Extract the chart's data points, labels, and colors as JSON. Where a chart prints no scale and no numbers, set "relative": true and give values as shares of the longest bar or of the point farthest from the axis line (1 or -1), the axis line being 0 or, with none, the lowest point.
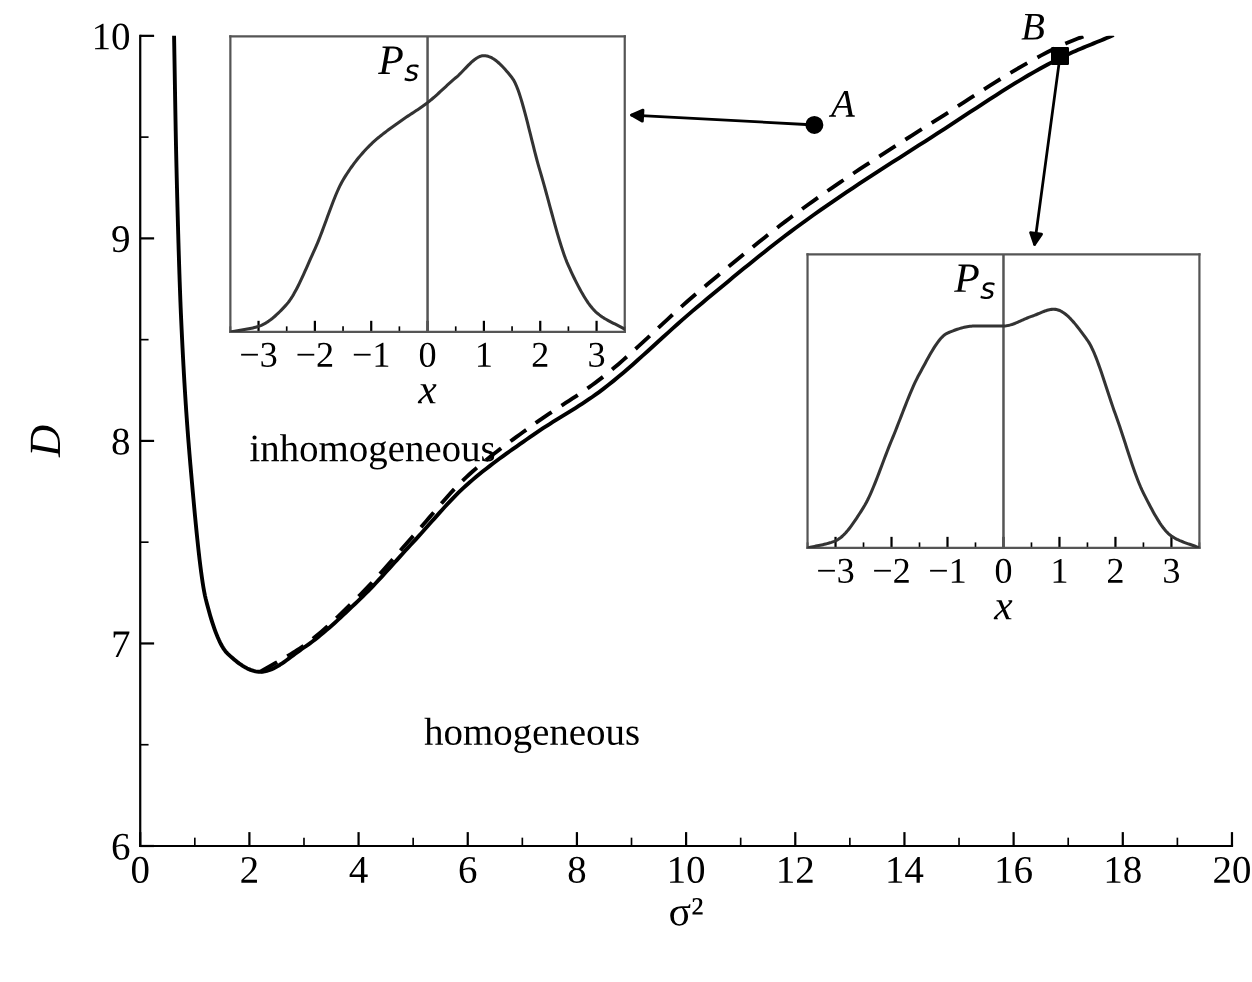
{
  "chart_data": [
    {
      "type": "line",
      "xlabel": "σ²",
      "ylabel": "D",
      "xlim": [
        0,
        20
      ],
      "ylim": [
        6,
        10
      ],
      "xticks": [
        0,
        2,
        4,
        6,
        8,
        10,
        12,
        14,
        16,
        18,
        20
      ],
      "yticks": [
        6,
        7,
        8,
        9,
        10
      ],
      "grid": false,
      "legend": false,
      "series": [
        {
          "color": "#000000",
          "line_style": "solid",
          "marker": "none",
          "x": [
            0.62,
            0.66,
            0.75,
            0.92,
            1.2,
            1.6,
            2.2,
            3.0,
            4.03,
            5.0,
            5.97,
            7.2,
            8.4,
            10.2,
            12.1,
            14.5,
            16.85,
            17.8
          ],
          "values": [
            10.0,
            9.4,
            8.6,
            7.88,
            7.22,
            6.95,
            6.86,
            6.98,
            7.22,
            7.5,
            7.78,
            8.03,
            8.24,
            8.66,
            9.07,
            9.5,
            9.89,
            10.0
          ]
        },
        {
          "color": "#000000",
          "line_style": "dashed",
          "marker": "none",
          "x": [
            2.2,
            3.0,
            4.03,
            5.0,
            5.97,
            7.2,
            8.4,
            10.2,
            12.1,
            14.5,
            16.85,
            17.3
          ],
          "values": [
            6.86,
            6.99,
            7.24,
            7.53,
            7.82,
            8.08,
            8.3,
            8.73,
            9.14,
            9.57,
            9.95,
            10.0
          ]
        },
        {
          "type": "scatter",
          "color": "#000000",
          "marker": "circle",
          "x": [
            12.35
          ],
          "values": [
            9.56
          ]
        },
        {
          "type": "scatter",
          "color": "#000000",
          "marker": "square",
          "x": [
            16.85
          ],
          "values": [
            9.9
          ]
        }
      ],
      "annotations": [
        {
          "text": "A",
          "x": 12.35,
          "y": 9.56
        },
        {
          "text": "B",
          "x": 16.85,
          "y": 9.9
        },
        "inhomogeneous",
        "homogeneous"
      ]
    },
    {
      "type": "line",
      "relative": true,
      "xlabel": "x",
      "ylabel": "P$_{s}$",
      "xlim": [
        -3.5,
        3.5
      ],
      "xticks": [
        {
          "value": -3,
          "label": "−3"
        },
        {
          "value": -2,
          "label": "−2"
        },
        {
          "value": -1,
          "label": "−1"
        },
        0,
        1,
        2,
        3
      ],
      "tick_labels": "x",
      "ref_lines": [
        {
          "axis": "x",
          "value": 0,
          "color": "#555555"
        }
      ],
      "series": [
        {
          "color": "#333333",
          "line_style": "solid",
          "marker": "none",
          "x": [
            -3.5,
            -3,
            -2.5,
            -2,
            -1.5,
            -1,
            -0.5,
            0,
            0.5,
            1,
            1.5,
            2,
            2.5,
            3,
            3.5
          ],
          "values": [
            0,
            0.02,
            0.1,
            0.3,
            0.55,
            0.68,
            0.76,
            0.83,
            0.92,
            1.0,
            0.92,
            0.58,
            0.24,
            0.07,
            0.01
          ]
        }
      ]
    },
    {
      "type": "line",
      "relative": true,
      "xlabel": "x",
      "ylabel": "P$_{s}$",
      "xlim": [
        -3.5,
        3.5
      ],
      "xticks": [
        {
          "value": -3,
          "label": "−3"
        },
        {
          "value": -2,
          "label": "−2"
        },
        {
          "value": -1,
          "label": "−1"
        },
        0,
        1,
        2,
        3
      ],
      "tick_labels": "x",
      "ref_lines": [
        {
          "axis": "x",
          "value": 0,
          "color": "#555555"
        }
      ],
      "series": [
        {
          "color": "#333333",
          "line_style": "solid",
          "marker": "none",
          "x": [
            -3.5,
            -3,
            -2.5,
            -2,
            -1.5,
            -1,
            -0.5,
            0,
            0.5,
            0.9,
            1.5,
            2,
            2.5,
            3,
            3.5
          ],
          "values": [
            0,
            0.03,
            0.17,
            0.45,
            0.73,
            0.9,
            0.93,
            0.93,
            0.97,
            1.0,
            0.87,
            0.56,
            0.23,
            0.05,
            0
          ]
        }
      ]
    }
  ]
}
